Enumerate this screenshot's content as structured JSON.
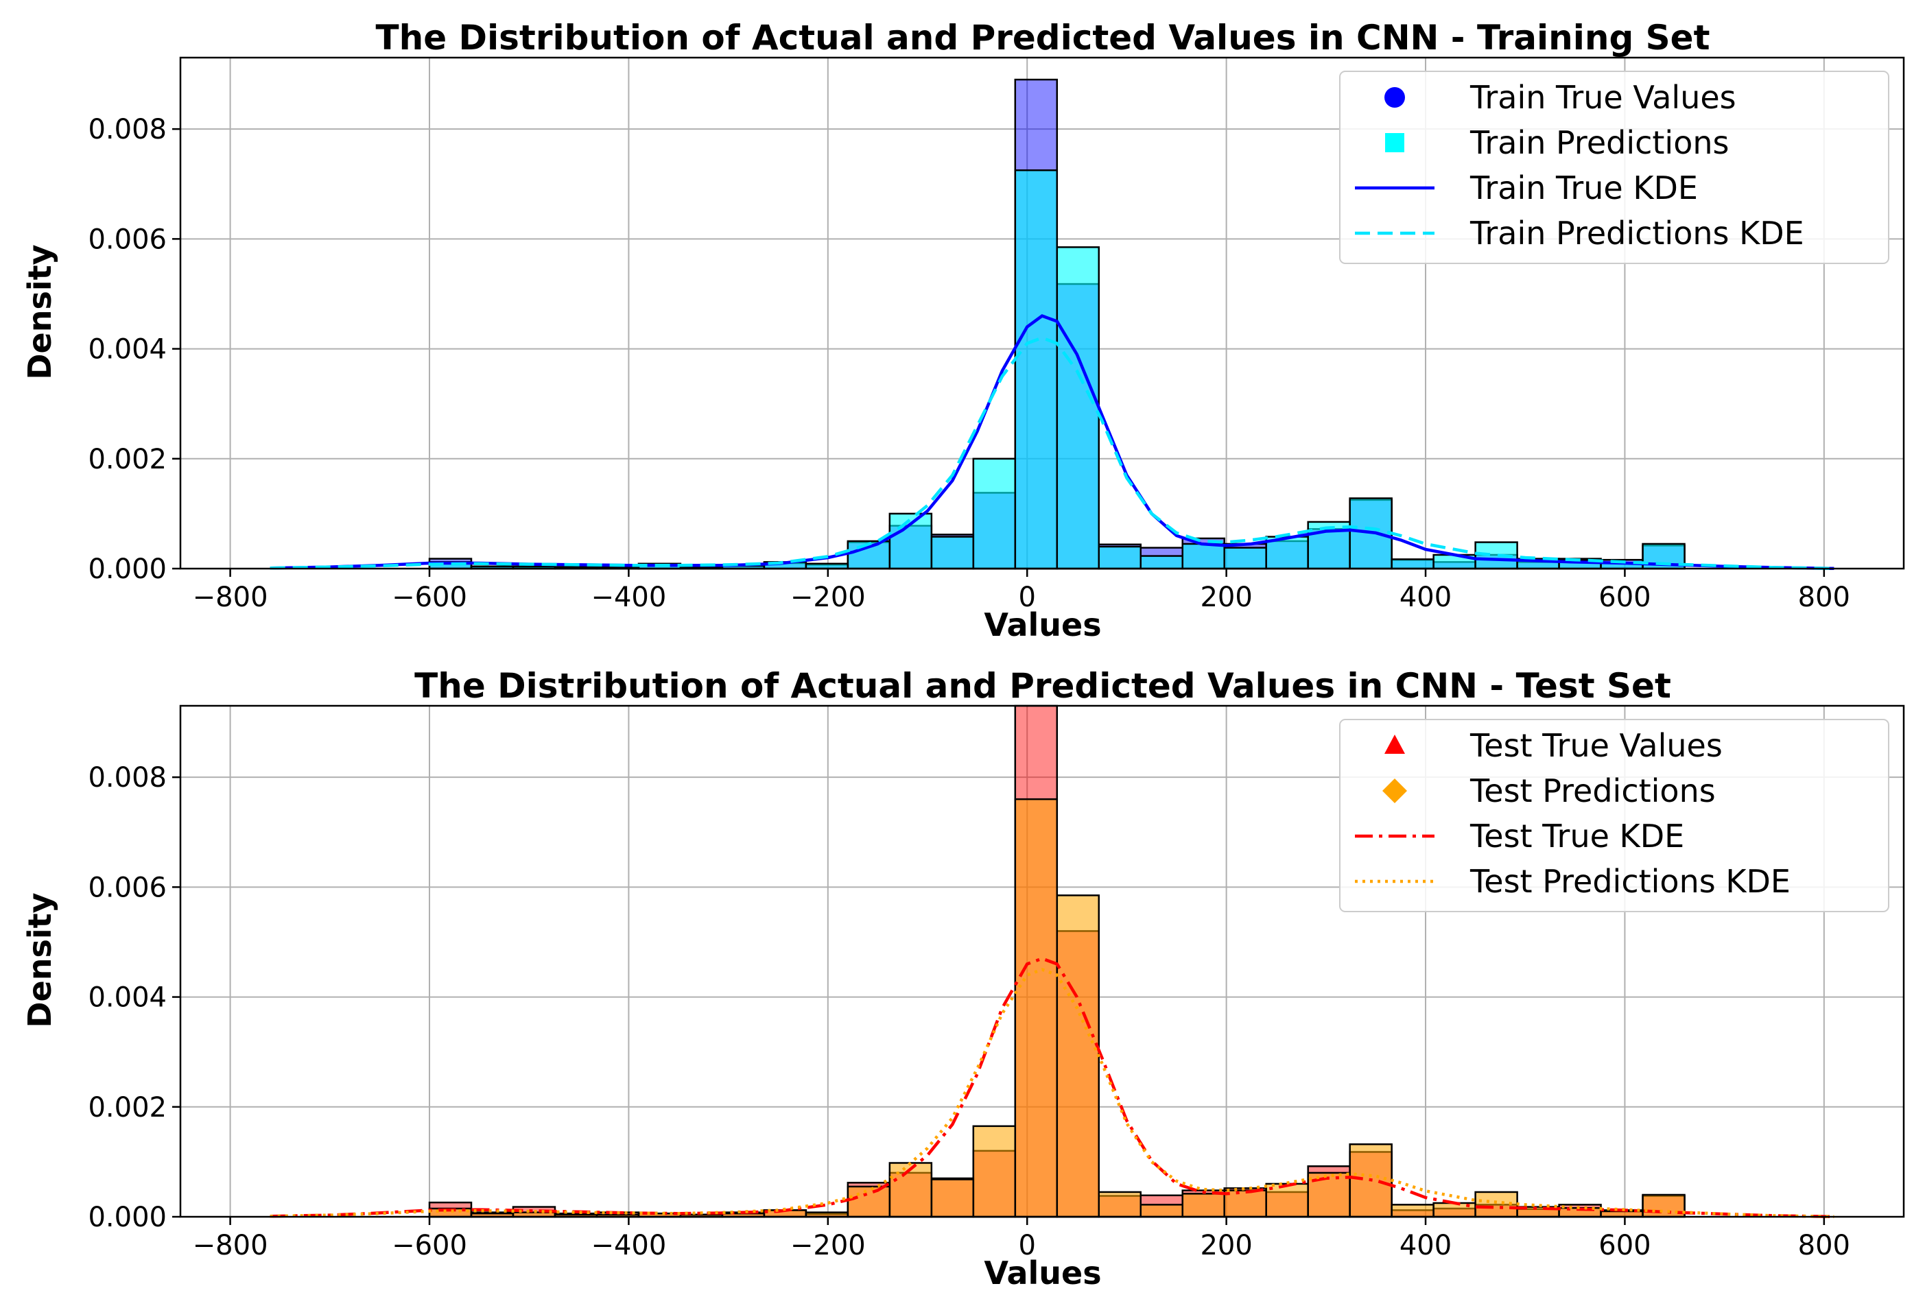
{
  "chart_data": [
    {
      "type": "histogram",
      "title": "The Distribution of Actual and Predicted Values in CNN - Training Set",
      "xlabel": "Values",
      "ylabel": "Density",
      "xlim": [
        -850,
        880
      ],
      "ylim": [
        0,
        0.0093
      ],
      "xticks": [
        -800,
        -600,
        -400,
        -200,
        0,
        200,
        400,
        600,
        800
      ],
      "xtick_labels": [
        "−800",
        "−600",
        "−400",
        "−200",
        "0",
        "200",
        "400",
        "600",
        "800"
      ],
      "yticks": [
        0,
        0.002,
        0.004,
        0.006,
        0.008
      ],
      "ytick_labels": [
        "0.000",
        "0.002",
        "0.004",
        "0.006",
        "0.008"
      ],
      "grid": true,
      "legend_position": "top-right",
      "bin_edges": [
        -600,
        -558,
        -516,
        -474,
        -432,
        -390,
        -348,
        -306,
        -264,
        -222,
        -180,
        -138,
        -96,
        -54,
        -12,
        30,
        72,
        114,
        156,
        198,
        240,
        282,
        324,
        366,
        408,
        450,
        492,
        534,
        576,
        618,
        660
      ],
      "series": [
        {
          "name": "Train True Values",
          "kind": "hist",
          "color": "#0000ff",
          "opacity": 0.45,
          "values": [
            0.00018,
            4e-05,
            3e-05,
            3e-05,
            4e-05,
            9e-05,
            3e-05,
            5e-05,
            0.0001,
            7e-05,
            0.00048,
            0.00078,
            0.00062,
            0.00138,
            0.0089,
            0.00518,
            0.00044,
            0.00038,
            0.00055,
            0.00045,
            0.0005,
            0.00072,
            0.00125,
            0.00016,
            0.00012,
            0.00025,
            0.00012,
            0.00018,
            0.00016,
            0.00042
          ]
        },
        {
          "name": "Train Predictions",
          "kind": "hist",
          "color": "#00ffff",
          "opacity": 0.6,
          "values": [
            0.00012,
            4e-05,
            4e-05,
            3e-05,
            3e-05,
            5e-05,
            3e-05,
            5e-05,
            0.00012,
            9e-05,
            0.0005,
            0.001,
            0.00058,
            0.002,
            0.00725,
            0.00585,
            0.0004,
            0.00023,
            0.00045,
            0.00038,
            0.00058,
            0.00085,
            0.00128,
            0.00017,
            0.00025,
            0.00048,
            0.00018,
            0.00015,
            0.0001,
            0.00045
          ]
        },
        {
          "name": "Train True KDE",
          "kind": "kde",
          "color": "#0000ff",
          "dash": "solid",
          "x": [
            -760,
            -700,
            -650,
            -600,
            -550,
            -500,
            -450,
            -400,
            -350,
            -300,
            -250,
            -200,
            -175,
            -150,
            -125,
            -100,
            -75,
            -50,
            -25,
            0,
            15,
            30,
            50,
            75,
            100,
            125,
            150,
            175,
            200,
            225,
            250,
            275,
            300,
            325,
            350,
            375,
            400,
            450,
            500,
            550,
            600,
            650,
            700,
            750,
            810
          ],
          "y": [
            1e-05,
            3e-05,
            6e-05,
            0.0001,
            0.0001,
            8e-05,
            7e-05,
            6e-05,
            6e-05,
            6e-05,
            9e-05,
            0.0002,
            0.0003,
            0.00045,
            0.0007,
            0.00105,
            0.0016,
            0.0025,
            0.0036,
            0.0044,
            0.0046,
            0.0045,
            0.0039,
            0.0028,
            0.0017,
            0.001,
            0.0006,
            0.00045,
            0.00042,
            0.00045,
            0.00052,
            0.0006,
            0.00068,
            0.0007,
            0.00065,
            0.00052,
            0.00035,
            0.00018,
            0.00015,
            0.00012,
            0.0001,
            7e-05,
            4e-05,
            2e-05,
            3e-06
          ]
        },
        {
          "name": "Train Predictions KDE",
          "kind": "kde",
          "color": "#00e5ff",
          "dash": "dashed",
          "x": [
            -760,
            -700,
            -650,
            -600,
            -550,
            -500,
            -450,
            -400,
            -350,
            -300,
            -250,
            -200,
            -175,
            -150,
            -125,
            -100,
            -75,
            -50,
            -25,
            0,
            15,
            30,
            50,
            75,
            100,
            125,
            150,
            175,
            200,
            225,
            250,
            275,
            300,
            325,
            350,
            375,
            400,
            450,
            500,
            550,
            600,
            650,
            700,
            750,
            810
          ],
          "y": [
            1e-05,
            3e-05,
            5e-05,
            8e-05,
            9e-05,
            8e-05,
            7e-05,
            6e-05,
            6e-05,
            7e-05,
            0.0001,
            0.00022,
            0.00035,
            0.0005,
            0.00078,
            0.00115,
            0.0017,
            0.0026,
            0.0035,
            0.0041,
            0.0042,
            0.0041,
            0.0036,
            0.0027,
            0.00165,
            0.001,
            0.00065,
            0.0005,
            0.00048,
            0.00052,
            0.00058,
            0.00066,
            0.00074,
            0.00076,
            0.00072,
            0.0006,
            0.00045,
            0.00028,
            0.0002,
            0.00016,
            0.00012,
            8e-05,
            5e-05,
            2e-05,
            3e-06
          ]
        }
      ]
    },
    {
      "type": "histogram",
      "title": "The Distribution of Actual and Predicted Values in CNN - Test Set",
      "xlabel": "Values",
      "ylabel": "Density",
      "xlim": [
        -850,
        880
      ],
      "ylim": [
        0,
        0.0093
      ],
      "xticks": [
        -800,
        -600,
        -400,
        -200,
        0,
        200,
        400,
        600,
        800
      ],
      "xtick_labels": [
        "−800",
        "−600",
        "−400",
        "−200",
        "0",
        "200",
        "400",
        "600",
        "800"
      ],
      "yticks": [
        0,
        0.002,
        0.004,
        0.006,
        0.008
      ],
      "ytick_labels": [
        "0.000",
        "0.002",
        "0.004",
        "0.006",
        "0.008"
      ],
      "grid": true,
      "legend_position": "top-right",
      "bin_edges": [
        -600,
        -558,
        -516,
        -474,
        -432,
        -390,
        -348,
        -306,
        -264,
        -222,
        -180,
        -138,
        -96,
        -54,
        -12,
        30,
        72,
        114,
        156,
        198,
        240,
        282,
        324,
        366,
        408,
        450,
        492,
        534,
        576,
        618,
        660
      ],
      "series": [
        {
          "name": "Test True Values",
          "kind": "hist",
          "color": "#ff0000",
          "opacity": 0.45,
          "values": [
            0.00026,
            8e-05,
            0.00018,
            6e-05,
            8e-05,
            6e-05,
            4e-05,
            8e-05,
            0.00012,
            5e-05,
            0.00062,
            0.0008,
            0.0007,
            0.0012,
            0.0093,
            0.0052,
            0.00038,
            0.00039,
            0.00048,
            0.00052,
            0.00045,
            0.00092,
            0.00118,
            0.00012,
            0.00015,
            0.00022,
            0.00014,
            0.00022,
            0.00012,
            0.00038
          ]
        },
        {
          "name": "Test Predictions",
          "kind": "hist",
          "color": "#ffa500",
          "opacity": 0.55,
          "values": [
            0.00015,
            6e-05,
            8e-05,
            4e-05,
            4e-05,
            6e-05,
            4e-05,
            6e-05,
            0.00012,
            8e-05,
            0.00055,
            0.00098,
            0.00068,
            0.00165,
            0.0076,
            0.00585,
            0.00045,
            0.00022,
            0.00042,
            0.00048,
            0.0006,
            0.0008,
            0.00132,
            0.00022,
            0.00025,
            0.00045,
            0.00018,
            0.00016,
            0.0001,
            0.0004
          ]
        },
        {
          "name": "Test True KDE",
          "kind": "kde",
          "color": "#ff0000",
          "dash": "dashdot",
          "x": [
            -760,
            -700,
            -650,
            -600,
            -550,
            -500,
            -450,
            -400,
            -350,
            -300,
            -250,
            -200,
            -175,
            -150,
            -125,
            -100,
            -75,
            -50,
            -25,
            0,
            15,
            30,
            50,
            75,
            100,
            125,
            150,
            175,
            200,
            225,
            250,
            275,
            300,
            325,
            350,
            375,
            400,
            450,
            500,
            550,
            600,
            650,
            700,
            750,
            810
          ],
          "y": [
            1e-05,
            3e-05,
            7e-05,
            0.00012,
            0.00013,
            0.00011,
            9e-05,
            7e-05,
            6e-05,
            7e-05,
            0.0001,
            0.00022,
            0.00033,
            0.00048,
            0.00075,
            0.00112,
            0.00168,
            0.0026,
            0.0038,
            0.0046,
            0.0047,
            0.0046,
            0.004,
            0.0029,
            0.00175,
            0.00102,
            0.0006,
            0.00045,
            0.00042,
            0.00046,
            0.00053,
            0.00062,
            0.0007,
            0.00072,
            0.00066,
            0.00052,
            0.00035,
            0.00018,
            0.00016,
            0.00014,
            0.00012,
            8e-05,
            5e-05,
            2e-05,
            3e-06
          ]
        },
        {
          "name": "Test Predictions KDE",
          "kind": "kde",
          "color": "#ffa500",
          "dash": "dotted",
          "x": [
            -760,
            -700,
            -650,
            -600,
            -550,
            -500,
            -450,
            -400,
            -350,
            -300,
            -250,
            -200,
            -175,
            -150,
            -125,
            -100,
            -75,
            -50,
            -25,
            0,
            15,
            30,
            50,
            75,
            100,
            125,
            150,
            175,
            200,
            225,
            250,
            275,
            300,
            325,
            350,
            375,
            400,
            450,
            500,
            550,
            600,
            650,
            700,
            750,
            810
          ],
          "y": [
            1e-05,
            3e-05,
            6e-05,
            0.0001,
            0.00011,
            0.0001,
            8e-05,
            7e-05,
            6e-05,
            8e-05,
            0.00012,
            0.00025,
            0.00037,
            0.00055,
            0.00085,
            0.00125,
            0.0018,
            0.0027,
            0.0037,
            0.0044,
            0.0045,
            0.0044,
            0.0038,
            0.0028,
            0.0017,
            0.001,
            0.00065,
            0.0005,
            0.00048,
            0.00052,
            0.00058,
            0.00066,
            0.00074,
            0.00078,
            0.00074,
            0.00062,
            0.00047,
            0.0003,
            0.00022,
            0.00017,
            0.00013,
            9e-05,
            5e-05,
            2e-05,
            3e-06
          ]
        }
      ]
    }
  ]
}
